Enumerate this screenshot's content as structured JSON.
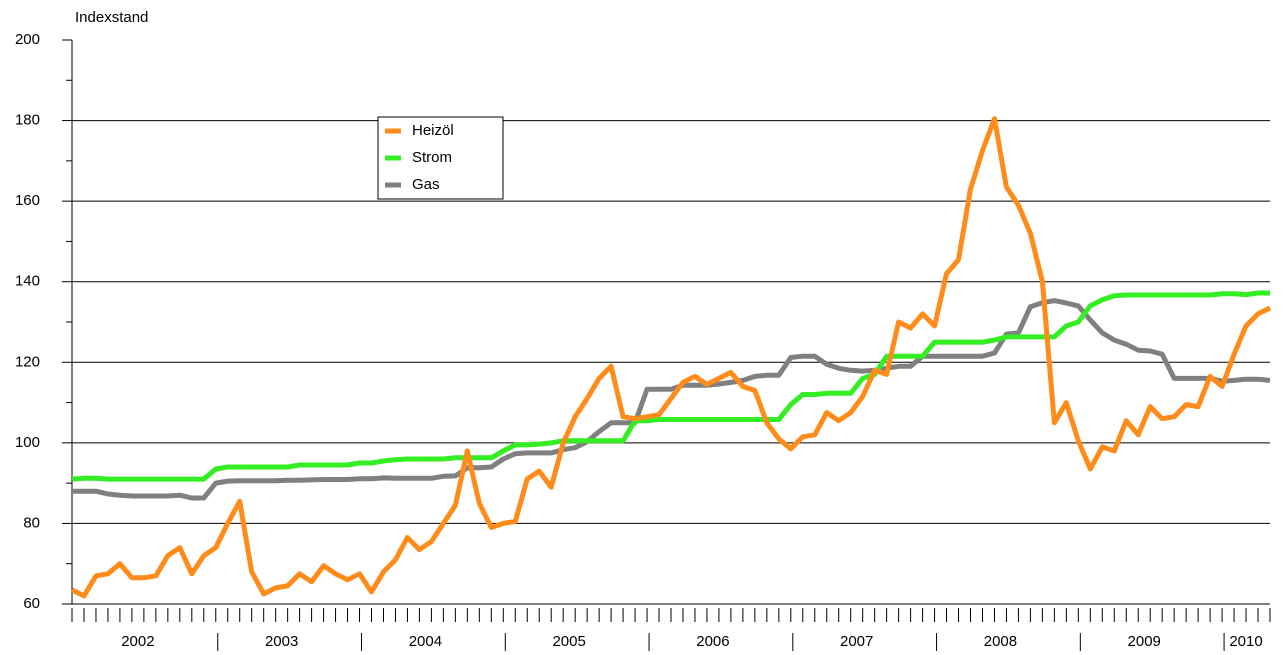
{
  "chart_data": {
    "type": "line",
    "y_axis_label": "Indexstand",
    "years": [
      "2002",
      "2003",
      "2004",
      "2005",
      "2006",
      "2007",
      "2008",
      "2009",
      "2010"
    ],
    "categories": [
      null,
      null,
      null,
      null,
      null,
      null,
      null,
      null,
      null,
      null,
      null,
      null,
      null,
      null,
      null,
      null,
      null,
      null,
      null,
      null,
      null,
      null,
      null,
      null,
      null,
      null,
      null,
      null,
      null,
      null,
      null,
      null,
      null,
      null,
      null,
      null,
      null,
      null,
      null,
      null,
      null,
      null,
      null,
      null,
      null,
      null,
      null,
      null,
      null,
      null,
      null,
      null,
      null,
      null,
      null,
      null,
      null,
      null,
      null,
      null,
      null,
      null,
      null,
      null,
      null,
      null,
      null,
      null,
      null,
      null,
      null,
      null,
      null,
      null,
      null,
      null,
      null,
      null,
      null,
      null,
      null,
      null,
      null,
      null,
      null,
      null,
      null,
      null,
      null,
      null,
      null,
      null,
      null,
      null,
      null,
      null,
      null,
      null,
      null,
      null,
      null
    ],
    "series": [
      {
        "name": "Heizöl",
        "color": "#ff8c1a",
        "values": [
          63.5,
          62,
          67,
          67.5,
          70,
          66.5,
          66.5,
          67,
          72,
          74,
          67.5,
          72,
          74,
          80,
          85.5,
          68,
          62.5,
          64,
          64.5,
          67.5,
          65.5,
          69.5,
          67.5,
          66,
          67.5,
          63,
          68,
          71,
          76.5,
          73.5,
          75.5,
          80,
          84.5,
          98,
          85,
          79,
          80,
          80.5,
          91,
          93,
          89,
          100,
          106.5,
          111,
          116,
          119,
          106.5,
          106,
          106.5,
          107,
          111,
          115,
          116.5,
          114.5,
          116,
          117.5,
          114,
          113,
          105,
          101,
          98.5,
          101.5,
          102,
          107.5,
          105.5,
          107.5,
          111.5,
          118,
          117,
          130,
          128.5,
          132,
          129,
          142,
          145.5,
          163,
          172.5,
          180.5,
          163.5,
          159,
          152,
          140,
          105,
          110,
          100.5,
          93.5,
          99,
          98,
          105.5,
          102,
          109,
          106,
          106.5,
          109.5,
          109,
          116.5,
          114,
          122,
          129,
          132,
          133.5
        ]
      },
      {
        "name": "Strom",
        "color": "#33ee22",
        "values": [
          91,
          91.2,
          91.2,
          91,
          91,
          91,
          91,
          91,
          91,
          91,
          91,
          91,
          93.5,
          94,
          94,
          94,
          94,
          94,
          94,
          94.5,
          94.5,
          94.5,
          94.5,
          94.5,
          95,
          95,
          95.5,
          95.8,
          96,
          96,
          96,
          96,
          96.3,
          96.3,
          96.3,
          96.3,
          98,
          99.5,
          99.5,
          99.7,
          100,
          100.5,
          100.5,
          100.5,
          100.5,
          100.5,
          100.5,
          105.5,
          105.5,
          105.8,
          105.8,
          105.8,
          105.8,
          105.8,
          105.8,
          105.8,
          105.8,
          105.8,
          105.8,
          105.8,
          109.5,
          112,
          112,
          112.3,
          112.3,
          112.3,
          116,
          117,
          121.5,
          121.5,
          121.5,
          121.5,
          125,
          125,
          125,
          125,
          125,
          125.5,
          126.3,
          126.3,
          126.3,
          126.3,
          126.3,
          129,
          130,
          134,
          135.5,
          136.5,
          136.7,
          136.7,
          136.7,
          136.7,
          136.7,
          136.7,
          136.7,
          136.7,
          137,
          137,
          136.8,
          137.2,
          137.2
        ]
      },
      {
        "name": "Gas",
        "color": "#808080",
        "values": [
          88,
          88,
          88,
          87.3,
          87,
          86.8,
          86.8,
          86.8,
          86.8,
          87,
          86.3,
          86.3,
          90,
          90.5,
          90.6,
          90.6,
          90.6,
          90.6,
          90.7,
          90.7,
          90.8,
          90.9,
          90.9,
          90.9,
          91.1,
          91.1,
          91.3,
          91.2,
          91.2,
          91.2,
          91.2,
          91.7,
          91.8,
          93.8,
          93.8,
          94,
          96,
          97.3,
          97.5,
          97.5,
          97.5,
          98.3,
          98.8,
          100.3,
          102.8,
          105,
          105,
          105,
          113.3,
          113.3,
          113.3,
          114.3,
          114.3,
          114.3,
          114.6,
          115,
          115.5,
          116.5,
          116.8,
          116.8,
          121.2,
          121.5,
          121.5,
          119.5,
          118.5,
          118,
          117.8,
          118,
          118.5,
          119,
          119,
          121.5,
          121.5,
          121.5,
          121.5,
          121.5,
          121.5,
          122.3,
          127,
          127.3,
          133.8,
          134.8,
          135.3,
          134.7,
          134,
          130.5,
          127.3,
          125.5,
          124.5,
          123,
          122.8,
          122,
          116,
          116,
          116,
          116,
          115.3,
          115.5,
          115.8,
          115.8,
          115.5
        ]
      }
    ],
    "ylim": [
      60,
      200
    ],
    "yticks": [
      60,
      80,
      100,
      120,
      140,
      160,
      180,
      200
    ],
    "yminor": [
      70,
      90,
      110,
      130,
      150,
      170,
      190
    ],
    "grid": true
  }
}
